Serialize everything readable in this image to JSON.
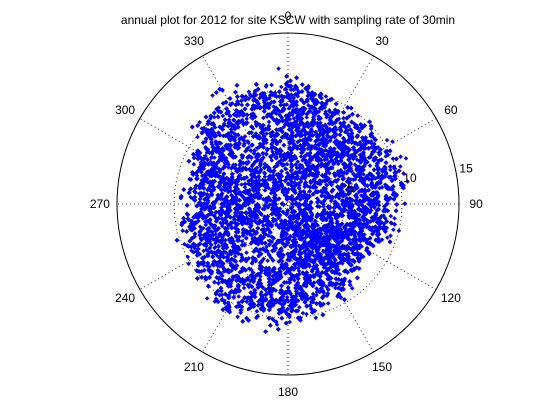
{
  "chart_data": {
    "type": "scatter",
    "subtype": "polar",
    "title": "annual plot for 2012 for site KSCW with sampling rate of 30min",
    "angle_zero": "top",
    "angle_direction": "clockwise",
    "angular_ticks": [
      "0",
      "30",
      "60",
      "90",
      "120",
      "150",
      "180",
      "210",
      "240",
      "270",
      "300",
      "330"
    ],
    "radial_max": 15,
    "radial_ticks": [
      "5",
      "10",
      "15"
    ],
    "radial_grid": [
      5,
      10
    ],
    "grid": true,
    "marker": "dot",
    "series_color": "#0000ff",
    "cluster_envelope": [
      {
        "theta": 0,
        "r": 10.2
      },
      {
        "theta": 15,
        "r": 9.4
      },
      {
        "theta": 30,
        "r": 8.6
      },
      {
        "theta": 45,
        "r": 8.7
      },
      {
        "theta": 60,
        "r": 9.5
      },
      {
        "theta": 75,
        "r": 9.6
      },
      {
        "theta": 90,
        "r": 8.9
      },
      {
        "theta": 105,
        "r": 8.6
      },
      {
        "theta": 120,
        "r": 7.4
      },
      {
        "theta": 135,
        "r": 7.6
      },
      {
        "theta": 150,
        "r": 8.4
      },
      {
        "theta": 165,
        "r": 8.9
      },
      {
        "theta": 180,
        "r": 9.5
      },
      {
        "theta": 195,
        "r": 9.9
      },
      {
        "theta": 210,
        "r": 10.3
      },
      {
        "theta": 225,
        "r": 9.3
      },
      {
        "theta": 240,
        "r": 8.8
      },
      {
        "theta": 255,
        "r": 9.0
      },
      {
        "theta": 270,
        "r": 8.1
      },
      {
        "theta": 285,
        "r": 8.2
      },
      {
        "theta": 300,
        "r": 8.6
      },
      {
        "theta": 315,
        "r": 9.7
      },
      {
        "theta": 330,
        "r": 10.2
      },
      {
        "theta": 345,
        "r": 10.4
      }
    ],
    "point_count": 17000
  }
}
